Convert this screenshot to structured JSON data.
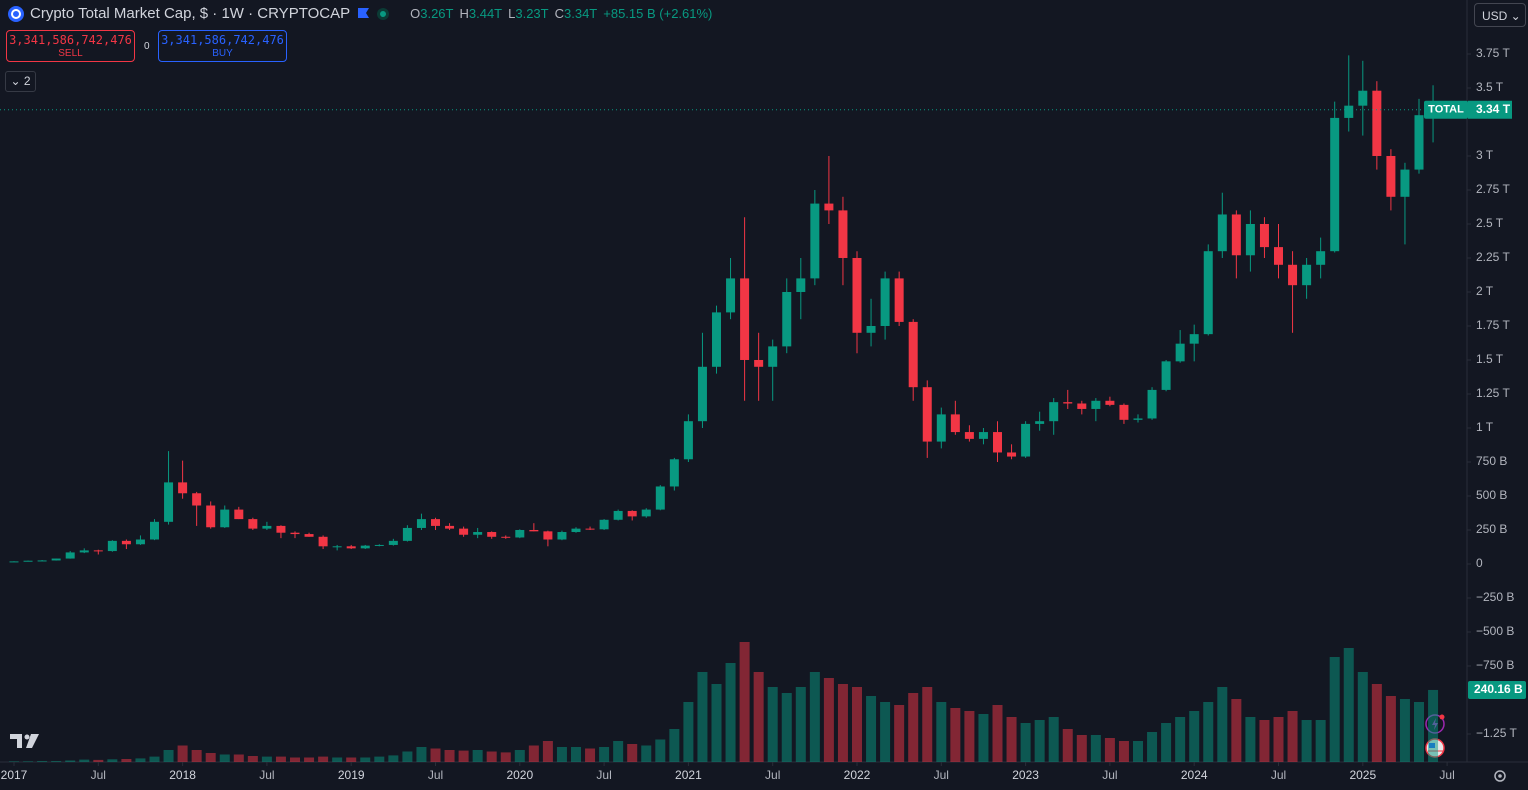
{
  "header": {
    "title": "Crypto Total Market Cap, $ · 1W · CRYPTOCAP",
    "ohlc": [
      {
        "key": "O",
        "value": "3.26T"
      },
      {
        "key": "H",
        "value": "3.44T"
      },
      {
        "key": "L",
        "value": "3.23T"
      },
      {
        "key": "C",
        "value": "3.34T"
      }
    ],
    "change": "+85.15 B (+2.61%)"
  },
  "currency": "USD",
  "sell": {
    "price": "3,341,586,742,476",
    "label": "SELL"
  },
  "spread": "0",
  "buy": {
    "price": "3,341,586,742,476",
    "label": "BUY"
  },
  "indicators_count": "2",
  "chart_data": {
    "type": "candlestick",
    "x": [
      "2017-01",
      "2017-02",
      "2017-03",
      "2017-04",
      "2017-05",
      "2017-06",
      "2017-07",
      "2017-08",
      "2017-09",
      "2017-10",
      "2017-11",
      "2017-12",
      "2018-01",
      "2018-02",
      "2018-03",
      "2018-04",
      "2018-05",
      "2018-06",
      "2018-07",
      "2018-08",
      "2018-09",
      "2018-10",
      "2018-11",
      "2018-12",
      "2019-01",
      "2019-02",
      "2019-03",
      "2019-04",
      "2019-05",
      "2019-06",
      "2019-07",
      "2019-08",
      "2019-09",
      "2019-10",
      "2019-11",
      "2019-12",
      "2020-01",
      "2020-02",
      "2020-03",
      "2020-04",
      "2020-05",
      "2020-06",
      "2020-07",
      "2020-08",
      "2020-09",
      "2020-10",
      "2020-11",
      "2020-12",
      "2021-01",
      "2021-02",
      "2021-03",
      "2021-04",
      "2021-05",
      "2021-06",
      "2021-07",
      "2021-08",
      "2021-09",
      "2021-10",
      "2021-11",
      "2021-12",
      "2022-01",
      "2022-02",
      "2022-03",
      "2022-04",
      "2022-05",
      "2022-06",
      "2022-07",
      "2022-08",
      "2022-09",
      "2022-10",
      "2022-11",
      "2022-12",
      "2023-01",
      "2023-02",
      "2023-03",
      "2023-04",
      "2023-05",
      "2023-06",
      "2023-07",
      "2023-08",
      "2023-09",
      "2023-10",
      "2023-11",
      "2023-12",
      "2024-01",
      "2024-02",
      "2024-03",
      "2024-04",
      "2024-05",
      "2024-06",
      "2024-07",
      "2024-08",
      "2024-09",
      "2024-10",
      "2024-11",
      "2024-12",
      "2025-01",
      "2025-02",
      "2025-03",
      "2025-04",
      "2025-05",
      "2025-06"
    ],
    "open": [
      17,
      19,
      24,
      26,
      40,
      85,
      100,
      95,
      170,
      145,
      180,
      310,
      600,
      520,
      430,
      270,
      400,
      330,
      260,
      280,
      230,
      220,
      200,
      130,
      130,
      115,
      135,
      140,
      170,
      265,
      330,
      280,
      260,
      215,
      235,
      200,
      195,
      250,
      240,
      180,
      235,
      260,
      255,
      325,
      390,
      350,
      400,
      570,
      770,
      1050,
      1450,
      1850,
      2100,
      1500,
      1450,
      1600,
      2000,
      2100,
      2650,
      2600,
      2250,
      1700,
      1750,
      2100,
      1780,
      1300,
      900,
      1100,
      970,
      920,
      970,
      820,
      790,
      1030,
      1050,
      1190,
      1180,
      1140,
      1200,
      1170,
      1060,
      1070,
      1280,
      1490,
      1620,
      1690,
      2300,
      2570,
      2270,
      2500,
      2330,
      2200,
      2050,
      2200,
      2300,
      3280,
      3370,
      3480,
      3000,
      2700,
      2900,
      3300
    ],
    "high": [
      20,
      25,
      29,
      40,
      95,
      115,
      105,
      175,
      180,
      210,
      330,
      830,
      760,
      530,
      460,
      430,
      420,
      340,
      310,
      285,
      240,
      230,
      210,
      140,
      140,
      140,
      145,
      185,
      285,
      370,
      340,
      300,
      275,
      265,
      240,
      210,
      255,
      300,
      245,
      245,
      270,
      275,
      330,
      400,
      395,
      410,
      580,
      780,
      1100,
      1700,
      1900,
      2250,
      2550,
      1700,
      1650,
      2100,
      2250,
      2750,
      3000,
      2700,
      2300,
      1950,
      2150,
      2150,
      1800,
      1350,
      1150,
      1200,
      1020,
      1000,
      1050,
      880,
      1050,
      1120,
      1220,
      1280,
      1200,
      1220,
      1230,
      1180,
      1100,
      1300,
      1500,
      1720,
      1760,
      2350,
      2730,
      2600,
      2600,
      2550,
      2500,
      2300,
      2250,
      2400,
      3400,
      3740,
      3700,
      3550,
      3050,
      2950,
      3420,
      3520
    ],
    "low": [
      16,
      18,
      22,
      25,
      39,
      80,
      70,
      90,
      110,
      140,
      175,
      290,
      480,
      280,
      260,
      265,
      330,
      250,
      250,
      190,
      190,
      200,
      110,
      100,
      110,
      110,
      130,
      135,
      165,
      250,
      250,
      250,
      200,
      190,
      185,
      185,
      190,
      240,
      130,
      175,
      230,
      250,
      250,
      320,
      320,
      340,
      395,
      540,
      750,
      1000,
      1400,
      1800,
      1200,
      1200,
      1200,
      1550,
      1800,
      2050,
      2500,
      2050,
      1550,
      1600,
      1650,
      1750,
      1200,
      780,
      850,
      950,
      900,
      880,
      750,
      770,
      780,
      980,
      950,
      1140,
      1100,
      1050,
      1160,
      1030,
      1040,
      1060,
      1270,
      1480,
      1490,
      1680,
      2250,
      2100,
      2150,
      2250,
      2100,
      1700,
      1950,
      2100,
      2290,
      3180,
      3150,
      2900,
      2600,
      2350,
      2870,
      3100
    ],
    "close": [
      19,
      24,
      26,
      40,
      85,
      100,
      95,
      170,
      145,
      180,
      310,
      600,
      520,
      430,
      270,
      400,
      330,
      260,
      280,
      230,
      220,
      200,
      130,
      130,
      115,
      135,
      140,
      170,
      265,
      330,
      280,
      260,
      215,
      235,
      200,
      195,
      250,
      240,
      180,
      235,
      260,
      255,
      325,
      390,
      350,
      400,
      570,
      770,
      1050,
      1450,
      1850,
      2100,
      1500,
      1450,
      1600,
      2000,
      2100,
      2650,
      2600,
      2250,
      1700,
      1750,
      2100,
      1780,
      1300,
      900,
      1100,
      970,
      920,
      970,
      820,
      790,
      1030,
      1050,
      1190,
      1180,
      1140,
      1200,
      1170,
      1060,
      1070,
      1280,
      1490,
      1620,
      1690,
      2300,
      2570,
      2270,
      2500,
      2330,
      2200,
      2050,
      2200,
      2300,
      3280,
      3370,
      3480,
      3000,
      2700,
      2900,
      3300,
      3340
    ],
    "volume": [
      2,
      2,
      3,
      3,
      5,
      8,
      7,
      9,
      10,
      12,
      18,
      40,
      55,
      40,
      30,
      25,
      25,
      20,
      18,
      18,
      15,
      15,
      18,
      15,
      15,
      15,
      18,
      22,
      35,
      50,
      45,
      40,
      38,
      40,
      35,
      32,
      40,
      55,
      70,
      50,
      50,
      45,
      50,
      70,
      60,
      55,
      75,
      110,
      200,
      300,
      260,
      330,
      400,
      300,
      250,
      230,
      250,
      300,
      280,
      260,
      250,
      220,
      200,
      190,
      230,
      250,
      200,
      180,
      170,
      160,
      190,
      150,
      130,
      140,
      150,
      110,
      90,
      90,
      80,
      70,
      70,
      100,
      130,
      150,
      170,
      200,
      250,
      210,
      150,
      140,
      150,
      170,
      140,
      140,
      350,
      380,
      300,
      260,
      220,
      210,
      200,
      240.16
    ],
    "up_color": "#089981",
    "down_color": "#f23645",
    "ylim": [
      -1456,
      4147
    ],
    "yticks": [
      {
        "value": 3750,
        "label": "3.75 T"
      },
      {
        "value": 3500,
        "label": "3.5 T"
      },
      {
        "value": 3000,
        "label": "3 T"
      },
      {
        "value": 2750,
        "label": "2.75 T"
      },
      {
        "value": 2500,
        "label": "2.5 T"
      },
      {
        "value": 2250,
        "label": "2.25 T"
      },
      {
        "value": 2000,
        "label": "2 T"
      },
      {
        "value": 1750,
        "label": "1.75 T"
      },
      {
        "value": 1500,
        "label": "1.5 T"
      },
      {
        "value": 1250,
        "label": "1.25 T"
      },
      {
        "value": 1000,
        "label": "1 T"
      },
      {
        "value": 750,
        "label": "750 B"
      },
      {
        "value": 500,
        "label": "500 B"
      },
      {
        "value": 250,
        "label": "250 B"
      },
      0,
      {
        "value": -250,
        "label": "−250 B"
      },
      {
        "value": -500,
        "label": "−500 B"
      },
      {
        "value": -750,
        "label": "−750 B"
      },
      {
        "value": -1250,
        "label": "−1.25 T"
      }
    ],
    "xticks": [
      {
        "value": "2017-01",
        "label": "2017"
      },
      {
        "value": "2017-07",
        "label": "Jul"
      },
      {
        "value": "2018-01",
        "label": "2018"
      },
      {
        "value": "2018-07",
        "label": "Jul"
      },
      {
        "value": "2019-01",
        "label": "2019"
      },
      {
        "value": "2019-07",
        "label": "Jul"
      },
      {
        "value": "2020-01",
        "label": "2020"
      },
      {
        "value": "2020-07",
        "label": "Jul"
      },
      {
        "value": "2021-01",
        "label": "2021"
      },
      {
        "value": "2021-07",
        "label": "Jul"
      },
      {
        "value": "2022-01",
        "label": "2022"
      },
      {
        "value": "2022-07",
        "label": "Jul"
      },
      {
        "value": "2023-01",
        "label": "2023"
      },
      {
        "value": "2023-07",
        "label": "Jul"
      },
      {
        "value": "2024-01",
        "label": "2024"
      },
      {
        "value": "2024-07",
        "label": "Jul"
      },
      {
        "value": "2025-01",
        "label": "2025"
      },
      {
        "value": "2025-07",
        "label": "Jul"
      }
    ],
    "grid": false,
    "series_label": "TOTAL",
    "price_label": {
      "value": 3340,
      "label": "3.34 T"
    },
    "volume_label": {
      "value": 240.16,
      "label": "240.16 B"
    }
  }
}
